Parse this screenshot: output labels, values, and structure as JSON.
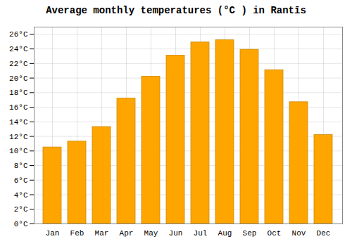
{
  "chart_data": {
    "type": "bar",
    "title": "Average monthly temperatures (°C ) in Rantīs",
    "categories": [
      "Jan",
      "Feb",
      "Mar",
      "Apr",
      "May",
      "Jun",
      "Jul",
      "Aug",
      "Sep",
      "Oct",
      "Nov",
      "Dec"
    ],
    "values": [
      10.5,
      11.3,
      13.3,
      17.2,
      20.2,
      23.1,
      24.9,
      25.2,
      23.9,
      21.1,
      16.7,
      12.2
    ],
    "color": "#FFA500",
    "ylim": [
      0,
      27
    ],
    "yticks": [
      {
        "value": 0,
        "label": "0°C"
      },
      {
        "value": 2,
        "label": "2°C"
      },
      {
        "value": 4,
        "label": "4°C"
      },
      {
        "value": 6,
        "label": "6°C"
      },
      {
        "value": 8,
        "label": "8°C"
      },
      {
        "value": 10,
        "label": "10°C"
      },
      {
        "value": 12,
        "label": "12°C"
      },
      {
        "value": 14,
        "label": "14°C"
      },
      {
        "value": 16,
        "label": "16°C"
      },
      {
        "value": 18,
        "label": "18°C"
      },
      {
        "value": 20,
        "label": "20°C"
      },
      {
        "value": 22,
        "label": "22°C"
      },
      {
        "value": 24,
        "label": "24°C"
      },
      {
        "value": 26,
        "label": "26°C"
      }
    ],
    "grid": true
  }
}
